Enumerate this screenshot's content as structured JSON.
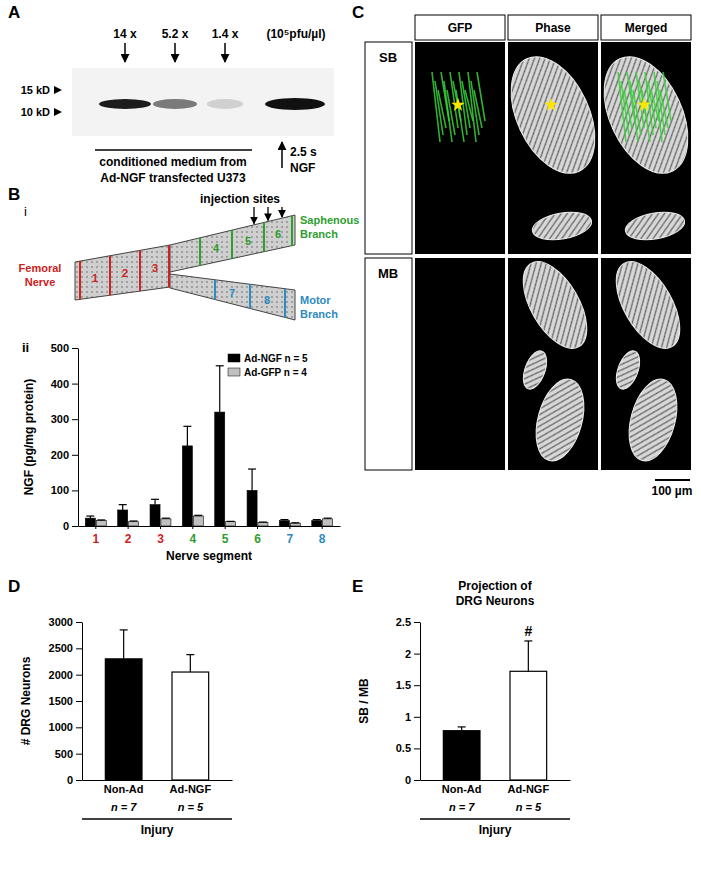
{
  "panel_labels": [
    "A",
    "B",
    "C",
    "D",
    "E"
  ],
  "subpanel_labels": [
    "i",
    "ii"
  ],
  "blot": {
    "lanes": [
      "14 x",
      "5.2 x",
      "1.4 x"
    ],
    "unit": "(10⁵pfu/µl)",
    "markers": [
      "15 kD",
      "10 kD"
    ],
    "sample_label": [
      "conditioned medium from",
      "Ad-NGF transfected U373"
    ],
    "control": [
      "2.5 s",
      "NGF"
    ]
  },
  "diagram": {
    "annotation": "injection sites",
    "segments": [
      "1",
      "2",
      "3",
      "4",
      "5",
      "6",
      "7",
      "8"
    ],
    "branches": [
      "Femoral Nerve",
      "Saphenous Branch",
      "Motor Branch"
    ]
  },
  "images": {
    "columns": [
      "GFP",
      "Phase",
      "Merged"
    ],
    "rows": [
      "SB",
      "MB"
    ],
    "scale_bar": "100 µm"
  },
  "chart_data": [
    {
      "type": "bar",
      "categories": [
        "1",
        "2",
        "3",
        "4",
        "5",
        "6",
        "7",
        "8"
      ],
      "x_label": "Nerve segment",
      "y_label": "NGF (pg/mg protein)",
      "ylim": [
        0,
        500
      ],
      "yticks": [
        0,
        100,
        200,
        300,
        400,
        500
      ],
      "legend": "top-right",
      "series": [
        {
          "name": "Ad-NGF n = 5",
          "color": "#000000",
          "values": [
            22,
            45,
            60,
            225,
            320,
            100,
            15,
            15
          ],
          "errors": [
            6,
            15,
            15,
            55,
            130,
            60,
            3,
            3
          ]
        },
        {
          "name": "Ad-GFP n = 4",
          "color": "#c0c0c0",
          "values": [
            15,
            12,
            20,
            28,
            12,
            10,
            8,
            20
          ],
          "errors": [
            2,
            2,
            2,
            2,
            1,
            1,
            1,
            2
          ]
        }
      ]
    },
    {
      "type": "bar",
      "categories": [
        "Non-Ad",
        "Ad-NGF"
      ],
      "values": [
        2300,
        2050
      ],
      "errors": [
        550,
        330
      ],
      "colors": [
        "#000000",
        "#ffffff"
      ],
      "y_label": "# DRG Neurons",
      "ylim": [
        0,
        3000
      ],
      "yticks": [
        0,
        500,
        1000,
        1500,
        2000,
        2500,
        3000
      ],
      "n_labels": [
        "n = 7",
        "n = 5"
      ],
      "group_label": "Injury"
    },
    {
      "type": "bar",
      "title": "Projection of DRG Neurons",
      "categories": [
        "Non-Ad",
        "Ad-NGF"
      ],
      "values": [
        0.78,
        1.72
      ],
      "errors": [
        0.06,
        0.48
      ],
      "colors": [
        "#000000",
        "#ffffff"
      ],
      "y_label": "SB / MB",
      "ylim": [
        0,
        2.5
      ],
      "yticks": [
        0,
        0.5,
        1,
        1.5,
        2,
        2.5
      ],
      "n_labels": [
        "n = 7",
        "n = 5"
      ],
      "group_label": "Injury",
      "annotations": [
        {
          "text": "#",
          "category": 1
        }
      ]
    }
  ]
}
